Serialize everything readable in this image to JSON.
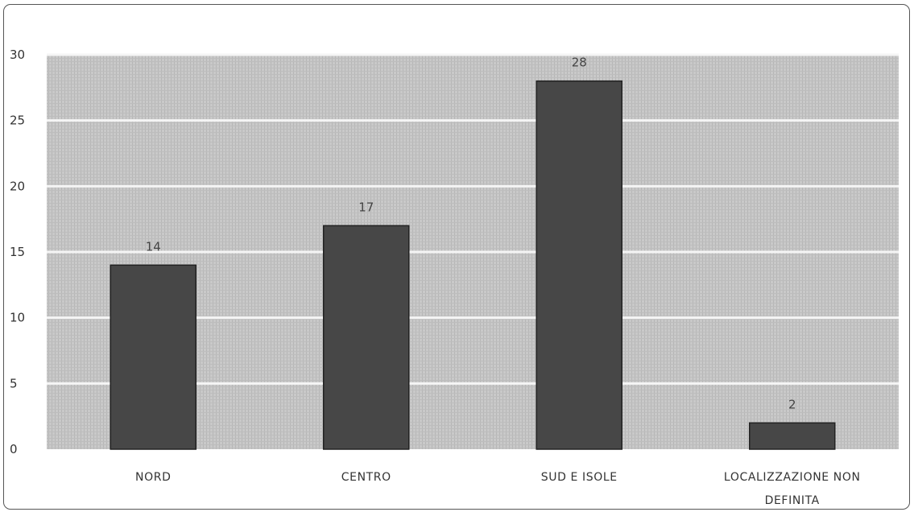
{
  "chart_data": {
    "type": "bar",
    "categories": [
      [
        "NORD"
      ],
      [
        "CENTRO"
      ],
      [
        "SUD E ISOLE"
      ],
      [
        "LOCALIZZAZIONE NON",
        "DEFINITA"
      ]
    ],
    "values": [
      14,
      17,
      28,
      2
    ],
    "data_labels": [
      "14",
      "17",
      "28",
      "2"
    ],
    "ylim": [
      0,
      30
    ],
    "yticks": [
      0,
      5,
      10,
      15,
      20,
      25,
      30
    ],
    "ytick_labels": [
      "0",
      "5",
      "10",
      "15",
      "20",
      "25",
      "30"
    ],
    "title": "",
    "xlabel": "",
    "ylabel": "",
    "grid": true,
    "legend": "none",
    "colors": {
      "bar": "#474747",
      "bar_edge": "#222222",
      "plot_background": "#c4c4c4",
      "gridline": "#f5f5f5",
      "text": "#333333"
    }
  }
}
